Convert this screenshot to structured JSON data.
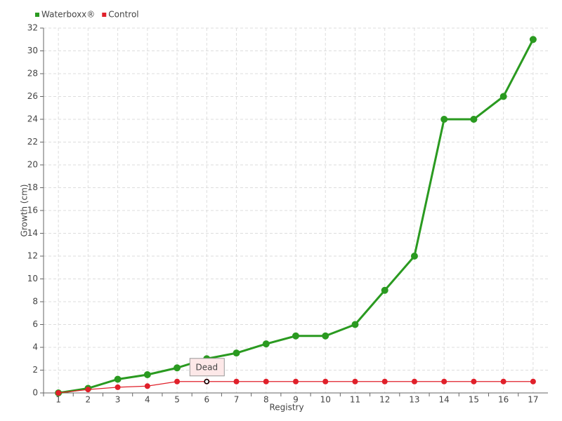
{
  "chart_data": {
    "type": "line",
    "x_label": "Registry",
    "y_label": "Growth (cm)",
    "categories": [
      "1",
      "2",
      "3",
      "4",
      "5",
      "6",
      "7",
      "8",
      "9",
      "10",
      "11",
      "12",
      "13",
      "14",
      "15",
      "16",
      "17"
    ],
    "series": [
      {
        "name": "Waterboxx®",
        "color": "#2a9a20",
        "values": [
          0,
          0.4,
          1.2,
          1.6,
          2.2,
          3.0,
          3.5,
          4.3,
          5,
          5,
          6,
          9,
          12,
          24,
          24,
          26,
          31
        ]
      },
      {
        "name": "Control",
        "color": "#e0202a",
        "values": [
          0,
          0.3,
          0.5,
          0.6,
          1,
          1,
          1,
          1,
          1,
          1,
          1,
          1,
          1,
          1,
          1,
          1,
          1
        ]
      }
    ],
    "annotations": [
      {
        "text": "Dead",
        "series": "Control",
        "x": "6"
      }
    ],
    "ylim": [
      0,
      32
    ],
    "yticks": [
      0,
      2,
      4,
      6,
      8,
      10,
      12,
      14,
      16,
      18,
      20,
      22,
      24,
      26,
      28,
      30,
      32
    ],
    "grid": true,
    "legend": "top-left"
  }
}
